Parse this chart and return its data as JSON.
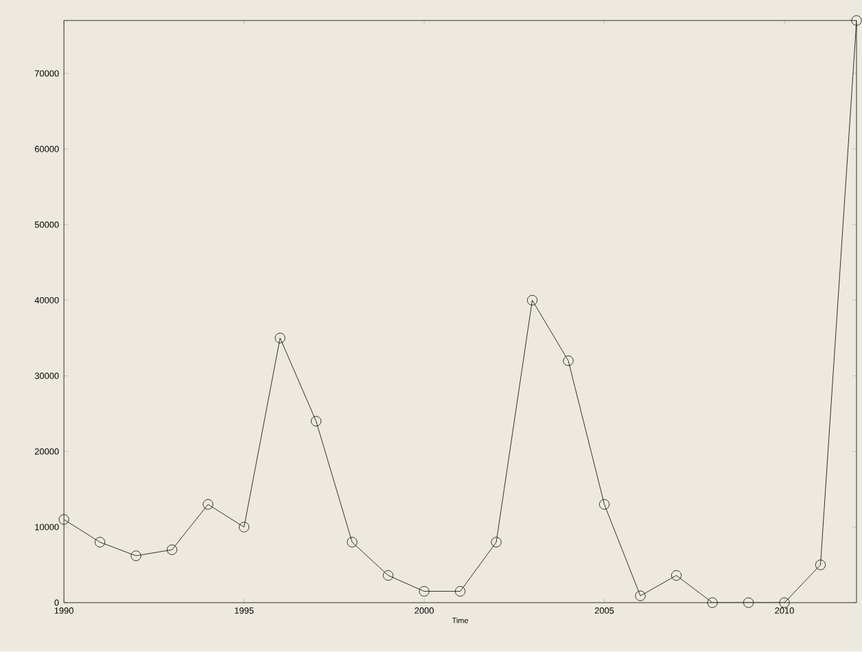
{
  "chart_data": {
    "type": "line",
    "xlabel": "Time",
    "x": [
      1990,
      1991,
      1992,
      1993,
      1994,
      1995,
      1996,
      1997,
      1998,
      1999,
      2000,
      2001,
      2002,
      2003,
      2004,
      2005,
      2006,
      2007,
      2008,
      2009,
      2010,
      2011,
      2012
    ],
    "series": [
      {
        "color": "#000000",
        "values": [
          11000,
          8000,
          6200,
          7000,
          13000,
          10000,
          35000,
          24000,
          8000,
          3600,
          1500,
          1500,
          8000,
          40000,
          32000,
          13000,
          900,
          3600,
          0,
          0,
          0,
          5000,
          77000
        ]
      }
    ],
    "xlim": [
      1990,
      2012
    ],
    "ylim": [
      0,
      77000
    ],
    "xticks": [
      1990,
      1995,
      2000,
      2005,
      2010
    ],
    "yticks": [
      0,
      10000,
      20000,
      30000,
      40000,
      50000,
      60000,
      70000
    ],
    "marker": "circle",
    "line_style": "solid"
  }
}
